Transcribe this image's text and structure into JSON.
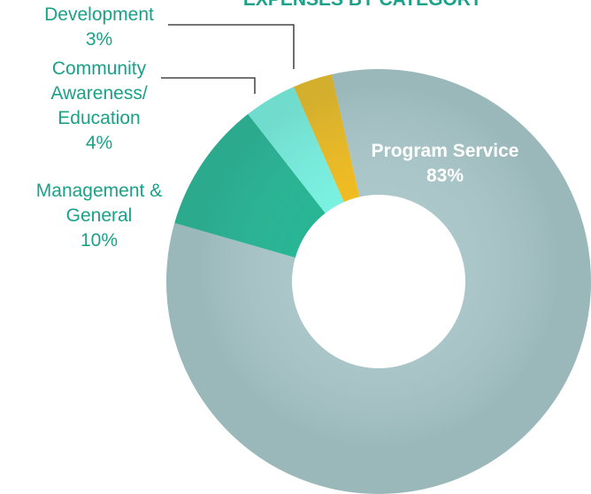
{
  "chart_data": {
    "type": "donut",
    "title": "EXPENSES BY CATEGORY",
    "categories": [
      "Program Service",
      "Management & General",
      "Community Awareness/ Education",
      "Development"
    ],
    "values": [
      83,
      10,
      4,
      3
    ],
    "value_labels": [
      "83%",
      "10%",
      "4%",
      "3%"
    ],
    "colors": [
      "#a9c6c9",
      "#14b38e",
      "#71f5e3",
      "#f5b90c"
    ]
  }
}
